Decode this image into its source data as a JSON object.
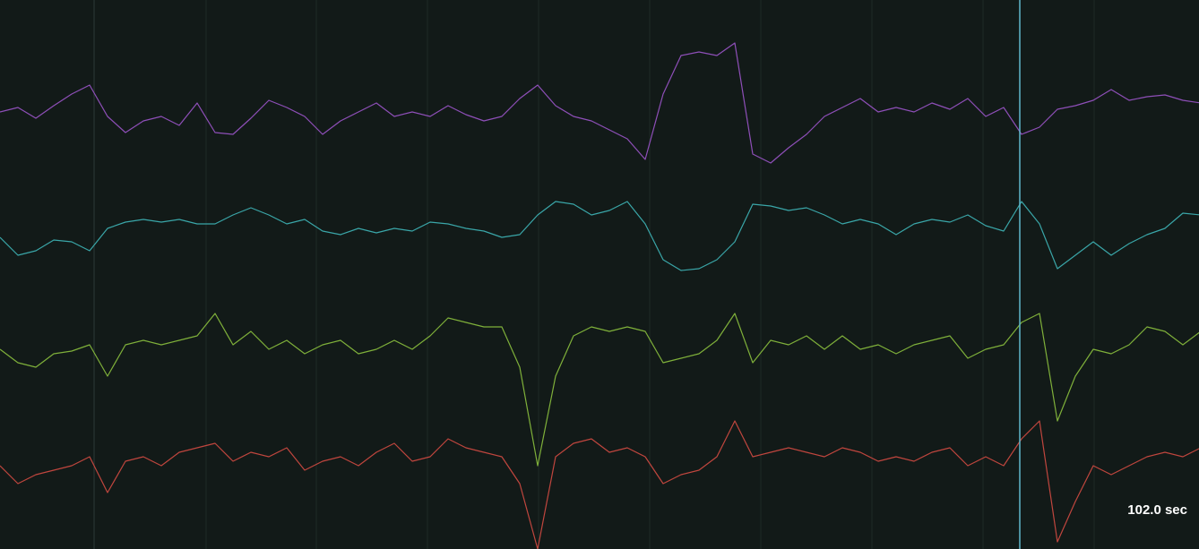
{
  "timeline": {
    "cursor_label": "102.0 sec"
  },
  "traces": [
    {
      "color": "#8e4fb8",
      "values": [
        0,
        5,
        -7,
        7,
        20,
        30,
        -5,
        -23,
        -10,
        -5,
        -15,
        10,
        -23,
        -25,
        -7,
        13,
        5,
        -5,
        -25,
        -10,
        0,
        10,
        -5,
        0,
        -5,
        7,
        -3,
        -10,
        -5,
        15,
        30,
        7,
        -5,
        -10,
        -20,
        -30,
        -53,
        20,
        63,
        67,
        63,
        77,
        -47,
        -57,
        -40,
        -25,
        -5,
        5,
        15,
        0,
        5,
        0,
        10,
        3,
        15,
        -5,
        5,
        -25,
        -17,
        3,
        7,
        13,
        25,
        13,
        17,
        19,
        13,
        10
      ]
    },
    {
      "color": "#3aa6a8",
      "values": [
        -5,
        -25,
        -20,
        -8,
        -10,
        -20,
        5,
        12,
        15,
        12,
        15,
        10,
        10,
        20,
        28,
        20,
        10,
        15,
        2,
        -2,
        5,
        0,
        5,
        2,
        12,
        10,
        5,
        2,
        -5,
        -2,
        20,
        35,
        32,
        20,
        25,
        35,
        10,
        -30,
        -42,
        -40,
        -30,
        -10,
        32,
        30,
        25,
        28,
        20,
        10,
        15,
        10,
        -2,
        10,
        15,
        12,
        20,
        8,
        2,
        35,
        10,
        -40,
        -25,
        -10,
        -25,
        -12,
        -2,
        5,
        22,
        20
      ]
    },
    {
      "color": "#7fb03a",
      "values": [
        0,
        -15,
        -20,
        -5,
        -2,
        5,
        -30,
        5,
        10,
        5,
        10,
        15,
        40,
        5,
        20,
        0,
        10,
        -5,
        5,
        10,
        -5,
        0,
        10,
        0,
        15,
        35,
        30,
        25,
        25,
        -20,
        -130,
        -30,
        15,
        25,
        20,
        25,
        20,
        -15,
        -10,
        -5,
        10,
        40,
        -15,
        10,
        5,
        15,
        0,
        15,
        0,
        5,
        -5,
        5,
        10,
        15,
        -10,
        0,
        5,
        30,
        40,
        -80,
        -30,
        0,
        -5,
        5,
        25,
        20,
        5,
        20
      ]
    },
    {
      "color": "#c0463e",
      "values": [
        0,
        -20,
        -10,
        -5,
        0,
        10,
        -30,
        5,
        10,
        0,
        15,
        20,
        25,
        5,
        15,
        10,
        20,
        -5,
        5,
        10,
        0,
        15,
        25,
        5,
        10,
        30,
        20,
        15,
        10,
        -20,
        -93,
        10,
        25,
        30,
        15,
        20,
        10,
        -20,
        -10,
        -5,
        10,
        50,
        10,
        15,
        20,
        15,
        10,
        20,
        15,
        5,
        10,
        5,
        15,
        20,
        0,
        10,
        0,
        30,
        50,
        -85,
        -40,
        0,
        -10,
        0,
        10,
        15,
        10,
        20
      ]
    }
  ]
}
